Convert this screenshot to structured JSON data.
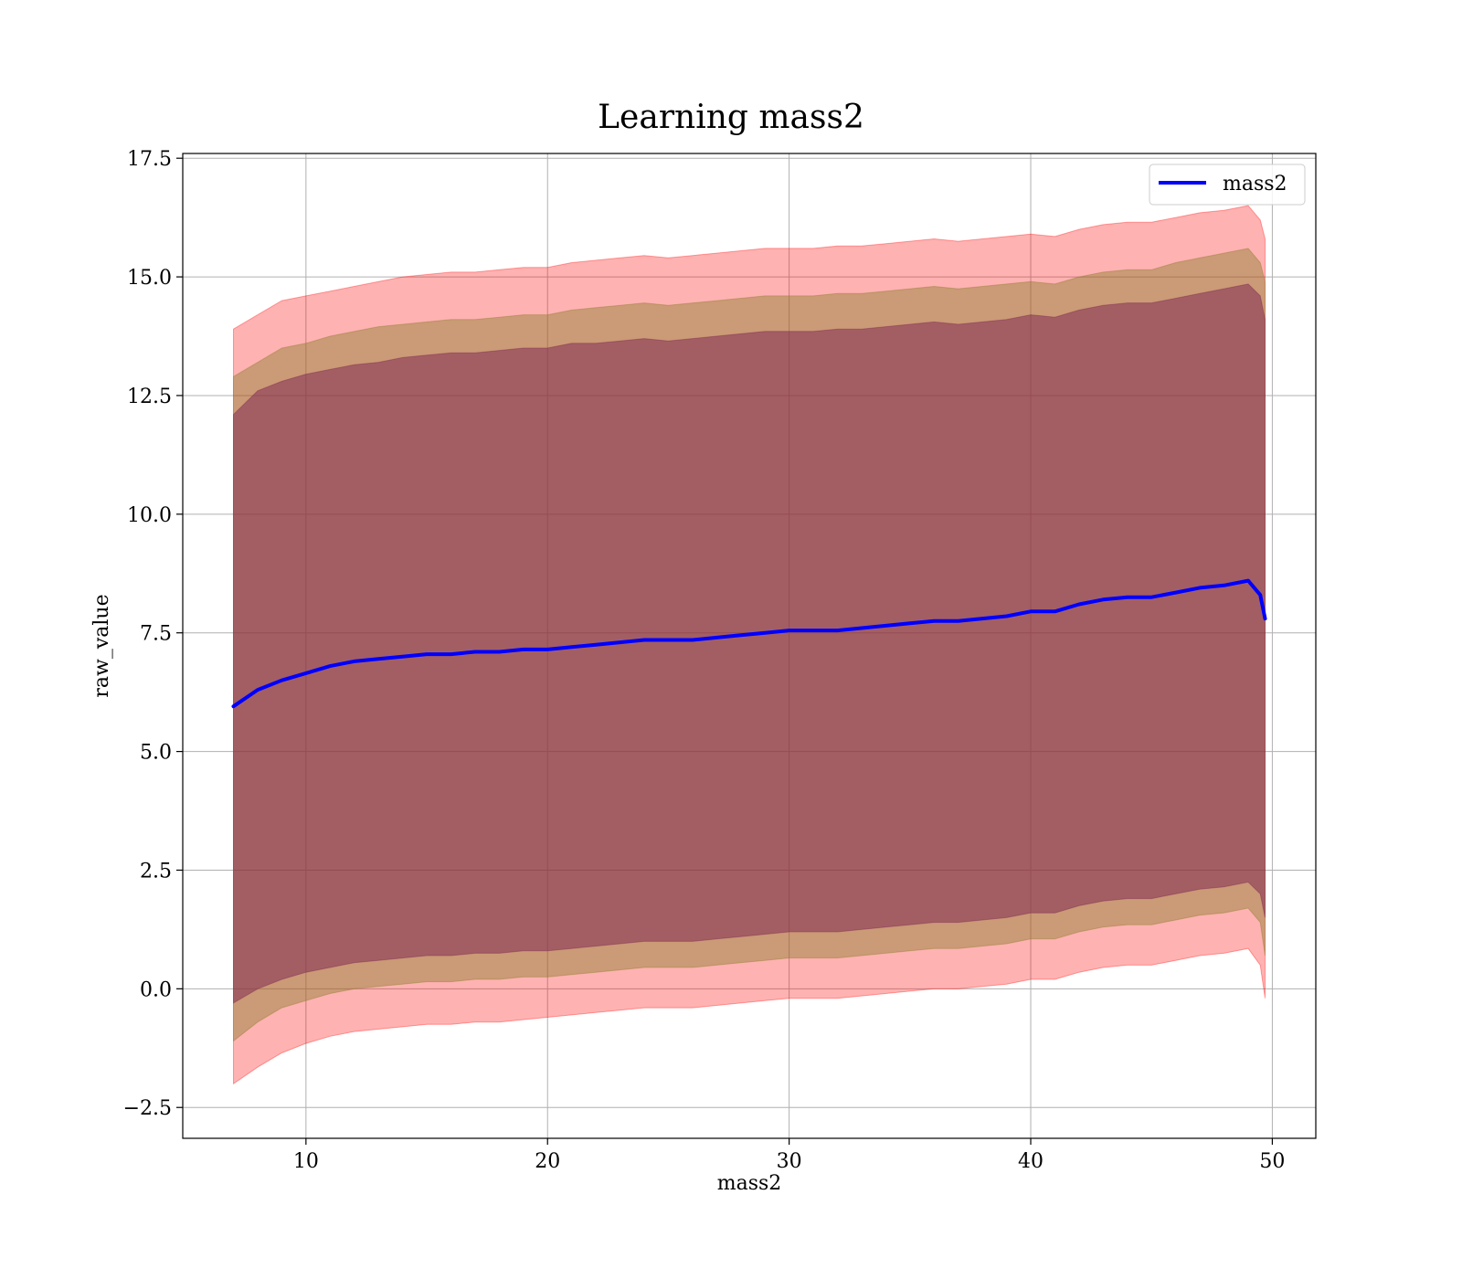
{
  "chart_data": {
    "type": "line",
    "title": "Learning mass2",
    "xlabel": "mass2",
    "ylabel": "raw_value",
    "xlim": [
      4.9,
      51.8
    ],
    "ylim": [
      -3.15,
      17.6
    ],
    "grid": true,
    "legend_position": "top-right",
    "x_ticks": [
      10,
      20,
      30,
      40,
      50
    ],
    "x_tick_labels": [
      "10",
      "20",
      "30",
      "40",
      "50"
    ],
    "y_ticks": [
      -2.5,
      0.0,
      2.5,
      5.0,
      7.5,
      10.0,
      12.5,
      15.0,
      17.5
    ],
    "y_tick_labels": [
      "−2.5",
      "0.0",
      "2.5",
      "5.0",
      "7.5",
      "10.0",
      "12.5",
      "15.0",
      "17.5"
    ],
    "colors": {
      "line": "#0000ff",
      "band_outer": "#ff0000",
      "band_middle": "#8b7d2c",
      "band_inner": "#7b2250",
      "grid": "#b0b0b0"
    },
    "series": [
      {
        "name": "mass2",
        "x": [
          7.0,
          8.0,
          9.0,
          10.0,
          11.0,
          12.0,
          13.0,
          14.0,
          15.0,
          16.0,
          17.0,
          18.0,
          19.0,
          20.0,
          21.0,
          22.0,
          23.0,
          24.0,
          25.0,
          26.0,
          27.0,
          28.0,
          29.0,
          30.0,
          31.0,
          32.0,
          33.0,
          34.0,
          35.0,
          36.0,
          37.0,
          38.0,
          39.0,
          40.0,
          41.0,
          42.0,
          43.0,
          44.0,
          45.0,
          46.0,
          47.0,
          48.0,
          49.0,
          49.5,
          49.7
        ],
        "values": [
          5.95,
          6.3,
          6.5,
          6.65,
          6.8,
          6.9,
          6.95,
          7.0,
          7.05,
          7.05,
          7.1,
          7.1,
          7.15,
          7.15,
          7.2,
          7.25,
          7.3,
          7.35,
          7.35,
          7.35,
          7.4,
          7.45,
          7.5,
          7.55,
          7.55,
          7.55,
          7.6,
          7.65,
          7.7,
          7.75,
          7.75,
          7.8,
          7.85,
          7.95,
          7.95,
          8.1,
          8.2,
          8.25,
          8.25,
          8.35,
          8.45,
          8.5,
          8.6,
          8.3,
          7.8
        ],
        "bands": {
          "outer_upper": [
            13.9,
            14.2,
            14.5,
            14.6,
            14.7,
            14.8,
            14.9,
            15.0,
            15.05,
            15.1,
            15.1,
            15.15,
            15.2,
            15.2,
            15.3,
            15.35,
            15.4,
            15.45,
            15.4,
            15.45,
            15.5,
            15.55,
            15.6,
            15.6,
            15.6,
            15.65,
            15.65,
            15.7,
            15.75,
            15.8,
            15.75,
            15.8,
            15.85,
            15.9,
            15.85,
            16.0,
            16.1,
            16.15,
            16.15,
            16.25,
            16.35,
            16.4,
            16.5,
            16.2,
            15.8
          ],
          "middle_upper": [
            12.9,
            13.2,
            13.5,
            13.6,
            13.75,
            13.85,
            13.95,
            14.0,
            14.05,
            14.1,
            14.1,
            14.15,
            14.2,
            14.2,
            14.3,
            14.35,
            14.4,
            14.45,
            14.4,
            14.45,
            14.5,
            14.55,
            14.6,
            14.6,
            14.6,
            14.65,
            14.65,
            14.7,
            14.75,
            14.8,
            14.75,
            14.8,
            14.85,
            14.9,
            14.85,
            15.0,
            15.1,
            15.15,
            15.15,
            15.3,
            15.4,
            15.5,
            15.6,
            15.3,
            14.9
          ],
          "inner_upper": [
            12.1,
            12.6,
            12.8,
            12.95,
            13.05,
            13.15,
            13.2,
            13.3,
            13.35,
            13.4,
            13.4,
            13.45,
            13.5,
            13.5,
            13.6,
            13.6,
            13.65,
            13.7,
            13.65,
            13.7,
            13.75,
            13.8,
            13.85,
            13.85,
            13.85,
            13.9,
            13.9,
            13.95,
            14.0,
            14.05,
            14.0,
            14.05,
            14.1,
            14.2,
            14.15,
            14.3,
            14.4,
            14.45,
            14.45,
            14.55,
            14.65,
            14.75,
            14.85,
            14.6,
            14.1
          ],
          "inner_lower": [
            -0.3,
            0.0,
            0.2,
            0.35,
            0.45,
            0.55,
            0.6,
            0.65,
            0.7,
            0.7,
            0.75,
            0.75,
            0.8,
            0.8,
            0.85,
            0.9,
            0.95,
            1.0,
            1.0,
            1.0,
            1.05,
            1.1,
            1.15,
            1.2,
            1.2,
            1.2,
            1.25,
            1.3,
            1.35,
            1.4,
            1.4,
            1.45,
            1.5,
            1.6,
            1.6,
            1.75,
            1.85,
            1.9,
            1.9,
            2.0,
            2.1,
            2.15,
            2.25,
            2.0,
            1.5
          ],
          "middle_lower": [
            -1.1,
            -0.7,
            -0.4,
            -0.25,
            -0.1,
            0.0,
            0.05,
            0.1,
            0.15,
            0.15,
            0.2,
            0.2,
            0.25,
            0.25,
            0.3,
            0.35,
            0.4,
            0.45,
            0.45,
            0.45,
            0.5,
            0.55,
            0.6,
            0.65,
            0.65,
            0.65,
            0.7,
            0.75,
            0.8,
            0.85,
            0.85,
            0.9,
            0.95,
            1.05,
            1.05,
            1.2,
            1.3,
            1.35,
            1.35,
            1.45,
            1.55,
            1.6,
            1.7,
            1.4,
            0.7
          ],
          "outer_lower": [
            -2.0,
            -1.65,
            -1.35,
            -1.15,
            -1.0,
            -0.9,
            -0.85,
            -0.8,
            -0.75,
            -0.75,
            -0.7,
            -0.7,
            -0.65,
            -0.6,
            -0.55,
            -0.5,
            -0.45,
            -0.4,
            -0.4,
            -0.4,
            -0.35,
            -0.3,
            -0.25,
            -0.2,
            -0.2,
            -0.2,
            -0.15,
            -0.1,
            -0.05,
            0.0,
            0.0,
            0.05,
            0.1,
            0.2,
            0.2,
            0.35,
            0.45,
            0.5,
            0.5,
            0.6,
            0.7,
            0.75,
            0.85,
            0.5,
            -0.2
          ]
        }
      }
    ]
  }
}
